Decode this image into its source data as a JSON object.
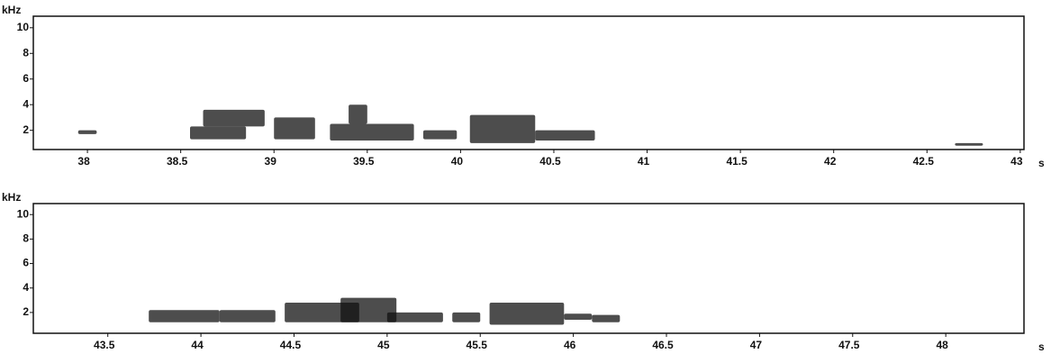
{
  "chart_data": [
    {
      "type": "spectrogram",
      "ylabel": "kHz",
      "xlabel": "s",
      "color": "#111111",
      "xlim": [
        37.71,
        43.02
      ],
      "xticks": [
        38,
        38.5,
        39,
        39.5,
        40,
        40.5,
        41,
        41.5,
        42,
        42.5,
        43
      ],
      "ylim": [
        0.5,
        10.9
      ],
      "yticks": [
        2,
        4,
        6,
        8,
        10
      ],
      "segments": [
        {
          "x": [
            37.95,
            38.05
          ],
          "y": [
            1.7,
            2.0
          ]
        },
        {
          "x": [
            38.55,
            38.85
          ],
          "y": [
            1.3,
            2.3
          ]
        },
        {
          "x": [
            38.62,
            38.95
          ],
          "y": [
            2.3,
            3.6
          ]
        },
        {
          "x": [
            39.0,
            39.22
          ],
          "y": [
            1.3,
            3.0
          ]
        },
        {
          "x": [
            39.3,
            39.75
          ],
          "y": [
            1.2,
            2.5
          ]
        },
        {
          "x": [
            39.4,
            39.5
          ],
          "y": [
            2.5,
            4.0
          ]
        },
        {
          "x": [
            39.8,
            39.98
          ],
          "y": [
            1.3,
            2.0
          ]
        },
        {
          "x": [
            40.05,
            40.4
          ],
          "y": [
            1.0,
            3.2
          ]
        },
        {
          "x": [
            40.4,
            40.72
          ],
          "y": [
            1.2,
            2.0
          ]
        },
        {
          "x": [
            42.65,
            42.8
          ],
          "y": [
            0.8,
            1.0
          ]
        }
      ]
    },
    {
      "type": "spectrogram",
      "ylabel": "kHz",
      "xlabel": "s",
      "color": "#111111",
      "xlim": [
        43.1,
        48.42
      ],
      "xticks": [
        43.5,
        44,
        44.5,
        45,
        45.5,
        46,
        46.5,
        47,
        47.5,
        48
      ],
      "ylim": [
        0.3,
        10.9
      ],
      "yticks": [
        2,
        4,
        6,
        8,
        10
      ],
      "segments": [
        {
          "x": [
            43.72,
            44.1
          ],
          "y": [
            1.2,
            2.2
          ]
        },
        {
          "x": [
            44.1,
            44.4
          ],
          "y": [
            1.2,
            2.2
          ]
        },
        {
          "x": [
            44.45,
            44.85
          ],
          "y": [
            1.2,
            2.8
          ]
        },
        {
          "x": [
            44.75,
            45.05
          ],
          "y": [
            1.2,
            3.2
          ]
        },
        {
          "x": [
            45.0,
            45.3
          ],
          "y": [
            1.2,
            2.0
          ]
        },
        {
          "x": [
            45.35,
            45.5
          ],
          "y": [
            1.2,
            2.0
          ]
        },
        {
          "x": [
            45.55,
            45.95
          ],
          "y": [
            1.0,
            2.8
          ]
        },
        {
          "x": [
            45.95,
            46.1
          ],
          "y": [
            1.4,
            1.9
          ]
        },
        {
          "x": [
            46.1,
            46.25
          ],
          "y": [
            1.2,
            1.8
          ]
        }
      ]
    }
  ]
}
